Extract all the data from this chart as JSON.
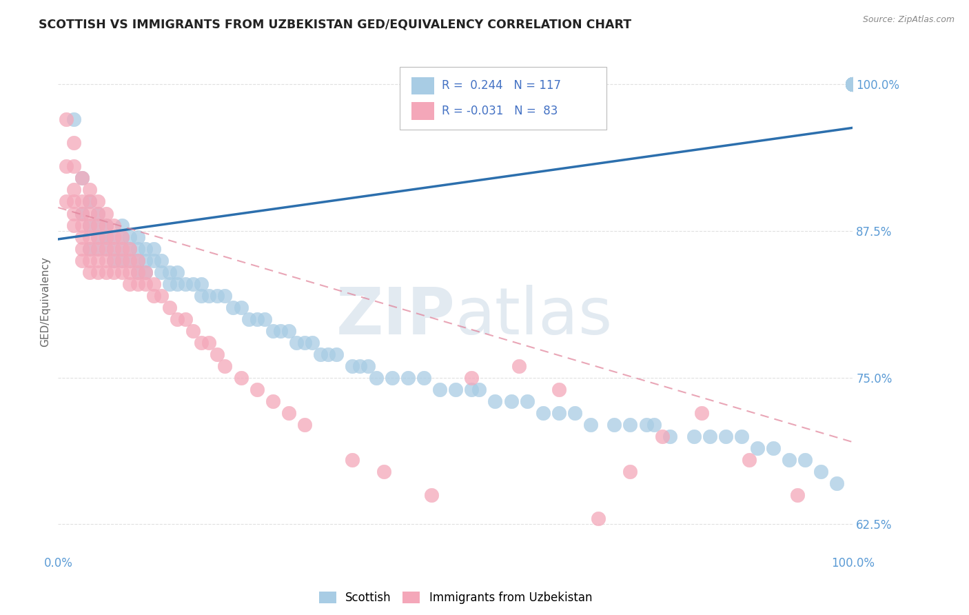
{
  "title": "SCOTTISH VS IMMIGRANTS FROM UZBEKISTAN GED/EQUIVALENCY CORRELATION CHART",
  "source_text": "Source: ZipAtlas.com",
  "ylabel": "GED/Equivalency",
  "r_blue": 0.244,
  "n_blue": 117,
  "r_pink": -0.031,
  "n_pink": 83,
  "blue_color": "#a8cce4",
  "pink_color": "#f4a7b9",
  "trendline_blue": "#2c6fad",
  "trendline_pink": "#e08098",
  "axis_label_color": "#5b9bd5",
  "title_color": "#222222",
  "legend_color": "#4472c4",
  "xlim": [
    0.0,
    1.0
  ],
  "ylim": [
    0.6,
    1.03
  ],
  "yticks": [
    0.625,
    0.75,
    0.875,
    1.0
  ],
  "ytick_labels": [
    "62.5%",
    "75.0%",
    "87.5%",
    "100.0%"
  ],
  "background_color": "#ffffff",
  "grid_color": "#e0e0e0",
  "blue_x": [
    0.02,
    0.03,
    0.03,
    0.04,
    0.04,
    0.04,
    0.05,
    0.05,
    0.05,
    0.05,
    0.06,
    0.06,
    0.06,
    0.06,
    0.07,
    0.07,
    0.07,
    0.08,
    0.08,
    0.08,
    0.08,
    0.09,
    0.09,
    0.09,
    0.1,
    0.1,
    0.1,
    0.1,
    0.11,
    0.11,
    0.11,
    0.12,
    0.12,
    0.13,
    0.13,
    0.14,
    0.14,
    0.15,
    0.15,
    0.16,
    0.17,
    0.18,
    0.18,
    0.19,
    0.2,
    0.21,
    0.22,
    0.23,
    0.24,
    0.25,
    0.26,
    0.27,
    0.28,
    0.29,
    0.3,
    0.31,
    0.32,
    0.33,
    0.34,
    0.35,
    0.37,
    0.38,
    0.39,
    0.4,
    0.42,
    0.44,
    0.46,
    0.48,
    0.5,
    0.52,
    0.53,
    0.55,
    0.57,
    0.59,
    0.61,
    0.63,
    0.65,
    0.67,
    0.7,
    0.72,
    0.74,
    0.75,
    0.77,
    0.8,
    0.82,
    0.84,
    0.86,
    0.88,
    0.9,
    0.92,
    0.94,
    0.96,
    0.98,
    1.0,
    1.0,
    1.0,
    1.0,
    1.0,
    1.0,
    1.0,
    1.0,
    1.0,
    1.0,
    1.0,
    1.0,
    1.0,
    1.0,
    1.0,
    1.0,
    1.0,
    1.0,
    1.0,
    1.0,
    1.0,
    1.0,
    1.0,
    1.0,
    1.0,
    1.0
  ],
  "blue_y": [
    0.97,
    0.92,
    0.89,
    0.9,
    0.88,
    0.86,
    0.89,
    0.88,
    0.87,
    0.86,
    0.88,
    0.87,
    0.87,
    0.86,
    0.87,
    0.86,
    0.85,
    0.88,
    0.87,
    0.86,
    0.85,
    0.87,
    0.86,
    0.85,
    0.87,
    0.86,
    0.85,
    0.84,
    0.86,
    0.85,
    0.84,
    0.86,
    0.85,
    0.85,
    0.84,
    0.84,
    0.83,
    0.84,
    0.83,
    0.83,
    0.83,
    0.83,
    0.82,
    0.82,
    0.82,
    0.82,
    0.81,
    0.81,
    0.8,
    0.8,
    0.8,
    0.79,
    0.79,
    0.79,
    0.78,
    0.78,
    0.78,
    0.77,
    0.77,
    0.77,
    0.76,
    0.76,
    0.76,
    0.75,
    0.75,
    0.75,
    0.75,
    0.74,
    0.74,
    0.74,
    0.74,
    0.73,
    0.73,
    0.73,
    0.72,
    0.72,
    0.72,
    0.71,
    0.71,
    0.71,
    0.71,
    0.71,
    0.7,
    0.7,
    0.7,
    0.7,
    0.7,
    0.69,
    0.69,
    0.68,
    0.68,
    0.67,
    0.66,
    1.0,
    1.0,
    1.0,
    1.0,
    1.0,
    1.0,
    1.0,
    1.0,
    1.0,
    1.0,
    1.0,
    1.0,
    1.0,
    1.0,
    1.0,
    1.0,
    1.0,
    1.0,
    1.0,
    1.0,
    1.0,
    1.0,
    1.0,
    1.0,
    1.0,
    1.0
  ],
  "pink_x": [
    0.01,
    0.01,
    0.01,
    0.02,
    0.02,
    0.02,
    0.02,
    0.02,
    0.02,
    0.03,
    0.03,
    0.03,
    0.03,
    0.03,
    0.03,
    0.03,
    0.04,
    0.04,
    0.04,
    0.04,
    0.04,
    0.04,
    0.04,
    0.04,
    0.05,
    0.05,
    0.05,
    0.05,
    0.05,
    0.05,
    0.05,
    0.06,
    0.06,
    0.06,
    0.06,
    0.06,
    0.06,
    0.07,
    0.07,
    0.07,
    0.07,
    0.07,
    0.08,
    0.08,
    0.08,
    0.08,
    0.09,
    0.09,
    0.09,
    0.09,
    0.1,
    0.1,
    0.1,
    0.11,
    0.11,
    0.12,
    0.12,
    0.13,
    0.14,
    0.15,
    0.16,
    0.17,
    0.18,
    0.19,
    0.2,
    0.21,
    0.23,
    0.25,
    0.27,
    0.29,
    0.31,
    0.37,
    0.41,
    0.47,
    0.52,
    0.58,
    0.63,
    0.68,
    0.72,
    0.76,
    0.81,
    0.87,
    0.93
  ],
  "pink_y": [
    0.97,
    0.93,
    0.9,
    0.95,
    0.93,
    0.91,
    0.9,
    0.89,
    0.88,
    0.92,
    0.9,
    0.89,
    0.88,
    0.87,
    0.86,
    0.85,
    0.91,
    0.9,
    0.89,
    0.88,
    0.87,
    0.86,
    0.85,
    0.84,
    0.9,
    0.89,
    0.88,
    0.87,
    0.86,
    0.85,
    0.84,
    0.89,
    0.88,
    0.87,
    0.86,
    0.85,
    0.84,
    0.88,
    0.87,
    0.86,
    0.85,
    0.84,
    0.87,
    0.86,
    0.85,
    0.84,
    0.86,
    0.85,
    0.84,
    0.83,
    0.85,
    0.84,
    0.83,
    0.84,
    0.83,
    0.83,
    0.82,
    0.82,
    0.81,
    0.8,
    0.8,
    0.79,
    0.78,
    0.78,
    0.77,
    0.76,
    0.75,
    0.74,
    0.73,
    0.72,
    0.71,
    0.68,
    0.67,
    0.65,
    0.75,
    0.76,
    0.74,
    0.63,
    0.67,
    0.7,
    0.72,
    0.68,
    0.65
  ],
  "blue_trend_x": [
    0.0,
    1.0
  ],
  "blue_trend_y": [
    0.868,
    0.963
  ],
  "pink_trend_x": [
    0.0,
    1.0
  ],
  "pink_trend_y": [
    0.895,
    0.695
  ]
}
